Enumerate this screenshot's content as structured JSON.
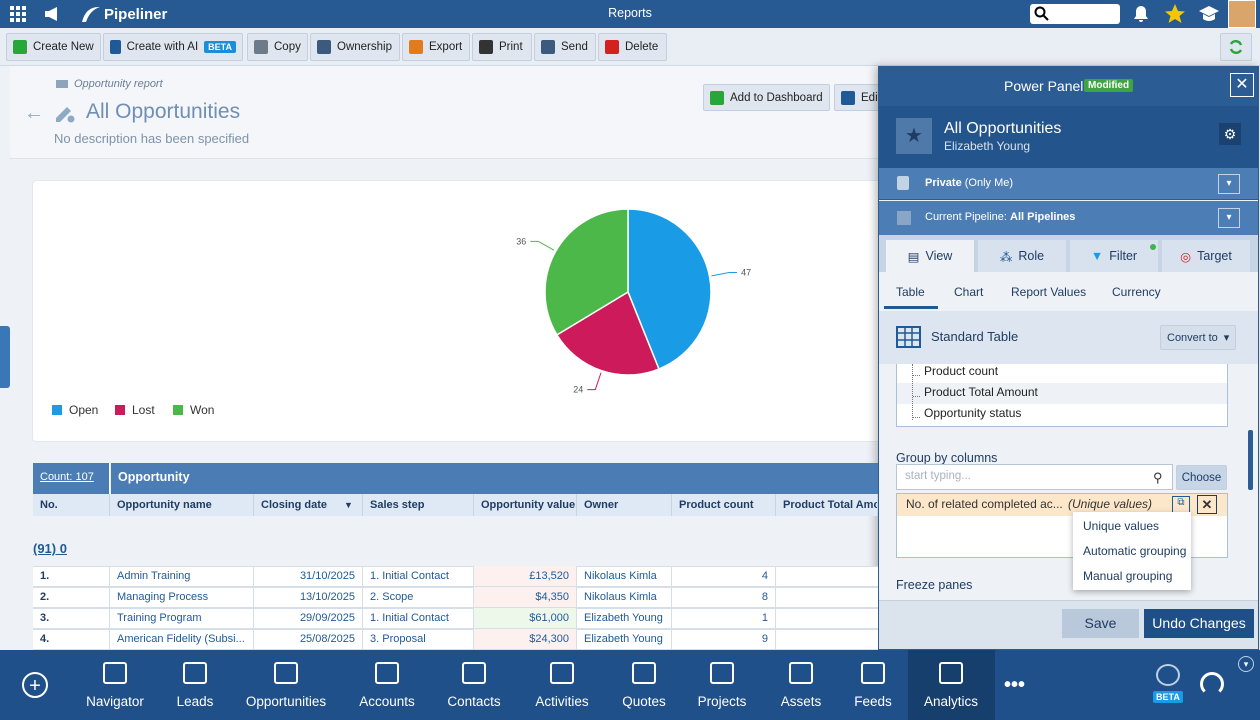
{
  "top_bar": {
    "brand": "Pipeliner",
    "title": "Reports"
  },
  "toolbar": {
    "items": [
      "Create New",
      "Create with AI",
      "Copy",
      "Ownership",
      "Export",
      "Print",
      "Send",
      "Delete"
    ],
    "ai_badge": "BETA"
  },
  "report": {
    "kind": "Opportunity report",
    "title": "All Opportunities",
    "description": "No description has been specified",
    "buttons": [
      "Add to Dashboard",
      "Edit"
    ]
  },
  "chart_data": {
    "type": "pie",
    "categories": [
      "Open",
      "Lost",
      "Won"
    ],
    "values": [
      47,
      24,
      36
    ],
    "colors": [
      "#1a9be6",
      "#cc1a5a",
      "#4cb849"
    ]
  },
  "table": {
    "count": "Count: 107",
    "group": "Opportunity",
    "columns": [
      "No.",
      "Opportunity name",
      "Closing date",
      "Sales step",
      "Opportunity value",
      "Owner",
      "Product count",
      "Product Total Amount"
    ],
    "group_label": "(91) 0",
    "rows": [
      [
        "1.",
        "Admin Training",
        "31/10/2025",
        "1. Initial Contact",
        "£13,520",
        "Nikolaus Kimla",
        "4"
      ],
      [
        "2.",
        "Managing Process",
        "13/10/2025",
        "2. Scope",
        "$4,350",
        "Nikolaus Kimla",
        "8"
      ],
      [
        "3.",
        "Training Program",
        "29/09/2025",
        "1. Initial Contact",
        "$61,000",
        "Elizabeth Young",
        "1"
      ],
      [
        "4.",
        "American Fidelity (Subsi...",
        "25/08/2025",
        "3. Proposal",
        "$24,300",
        "Elizabeth Young",
        "9"
      ]
    ]
  },
  "power_panel": {
    "title": "Power Panel",
    "badge": "Modified",
    "report_name": "All Opportunities",
    "owner": "Elizabeth Young",
    "privacy": "Private",
    "privacy_note": "(Only Me)",
    "pipeline_label": "Current Pipeline:",
    "pipeline": "All Pipelines",
    "tabs": [
      "View",
      "Role",
      "Filter",
      "Target"
    ],
    "subtabs": [
      "Table",
      "Chart",
      "Report Values",
      "Currency"
    ],
    "table_type": "Standard Table",
    "convert": "Convert to",
    "columns": [
      "Product count",
      "Product Total Amount",
      "Opportunity status"
    ],
    "group_title": "Group by columns",
    "placeholder": "start typing...",
    "choose": "Choose",
    "group_item": "No. of related completed ac...",
    "group_mode": "(Unique values)",
    "menu": [
      "Unique values",
      "Automatic grouping",
      "Manual grouping"
    ],
    "freeze": "Freeze panes",
    "save": "Save",
    "undo": "Undo Changes"
  },
  "nav": {
    "items": [
      "Navigator",
      "Leads",
      "Opportunities",
      "Accounts",
      "Contacts",
      "Activities",
      "Quotes",
      "Projects",
      "Assets",
      "Feeds",
      "Analytics"
    ],
    "badge": "BETA"
  }
}
